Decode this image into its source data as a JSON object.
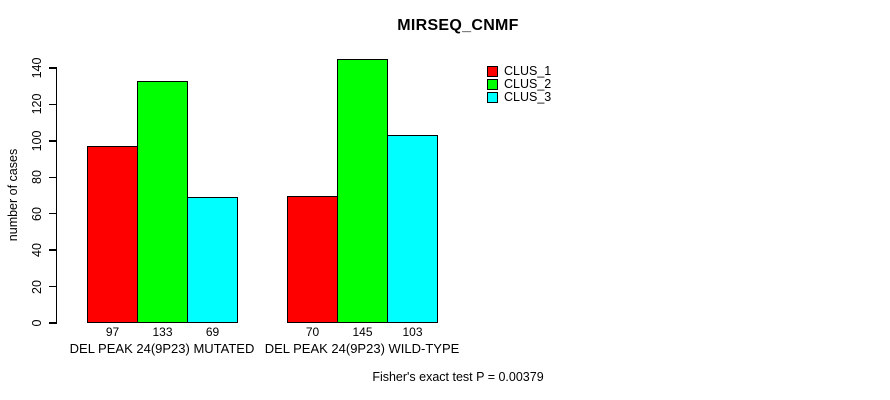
{
  "chart_data": {
    "type": "bar",
    "title": "MIRSEQ_CNMF",
    "xlabel": "",
    "ylabel": "number of cases",
    "ylim": [
      0,
      140
    ],
    "yticks": [
      0,
      20,
      40,
      60,
      80,
      100,
      120,
      140
    ],
    "grid": false,
    "legend_position": "top-right",
    "categories": [
      "DEL PEAK 24(9P23) MUTATED",
      "DEL PEAK 24(9P23) WILD-TYPE"
    ],
    "series": [
      {
        "name": "CLUS_1",
        "color": "#ff0000",
        "values": [
          97,
          70
        ]
      },
      {
        "name": "CLUS_2",
        "color": "#00ff00",
        "values": [
          133,
          145
        ]
      },
      {
        "name": "CLUS_3",
        "color": "#00ffff",
        "values": [
          69,
          103
        ]
      }
    ],
    "bar_value_labels": [
      [
        97,
        133,
        69
      ],
      [
        70,
        145,
        103
      ]
    ],
    "annotation": "Fisher's exact test P = 0.00379",
    "colors": {
      "axis": "#000000",
      "text": "#000000",
      "background": "#ffffff"
    }
  }
}
